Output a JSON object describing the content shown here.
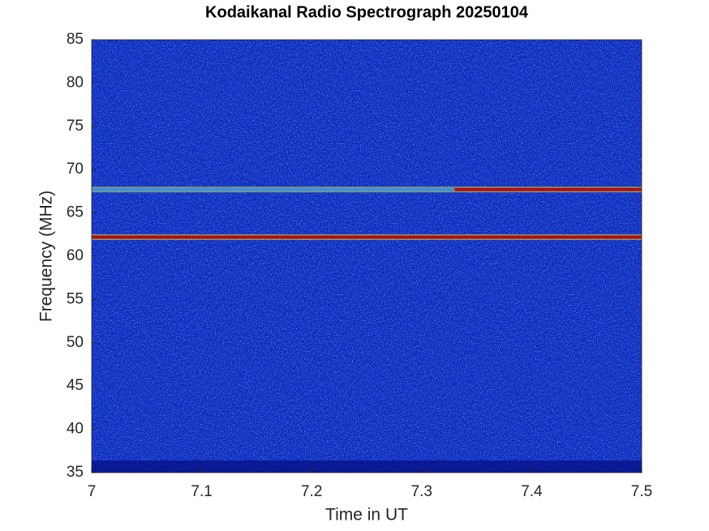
{
  "chart_data": {
    "type": "spectrogram",
    "title": "Kodaikanal Radio Spectrograph  20250104",
    "xlabel": "Time in UT",
    "ylabel": "Frequency (MHz)",
    "xlim": [
      7,
      7.5
    ],
    "xticks": [
      7,
      7.1,
      7.2,
      7.3,
      7.4,
      7.5
    ],
    "ylim": [
      35,
      85
    ],
    "yticks": [
      35,
      40,
      45,
      50,
      55,
      60,
      65,
      70,
      75,
      80,
      85
    ],
    "emission": [
      {
        "y": 62.2,
        "x": [
          7.0,
          7.5
        ],
        "color": "#b30d0d"
      },
      {
        "y": 67.7,
        "x": [
          7.0,
          7.33
        ],
        "color": "#3f8fe0"
      },
      {
        "y": 67.7,
        "x": [
          7.33,
          7.5
        ],
        "color": "#b30d0d"
      }
    ]
  }
}
